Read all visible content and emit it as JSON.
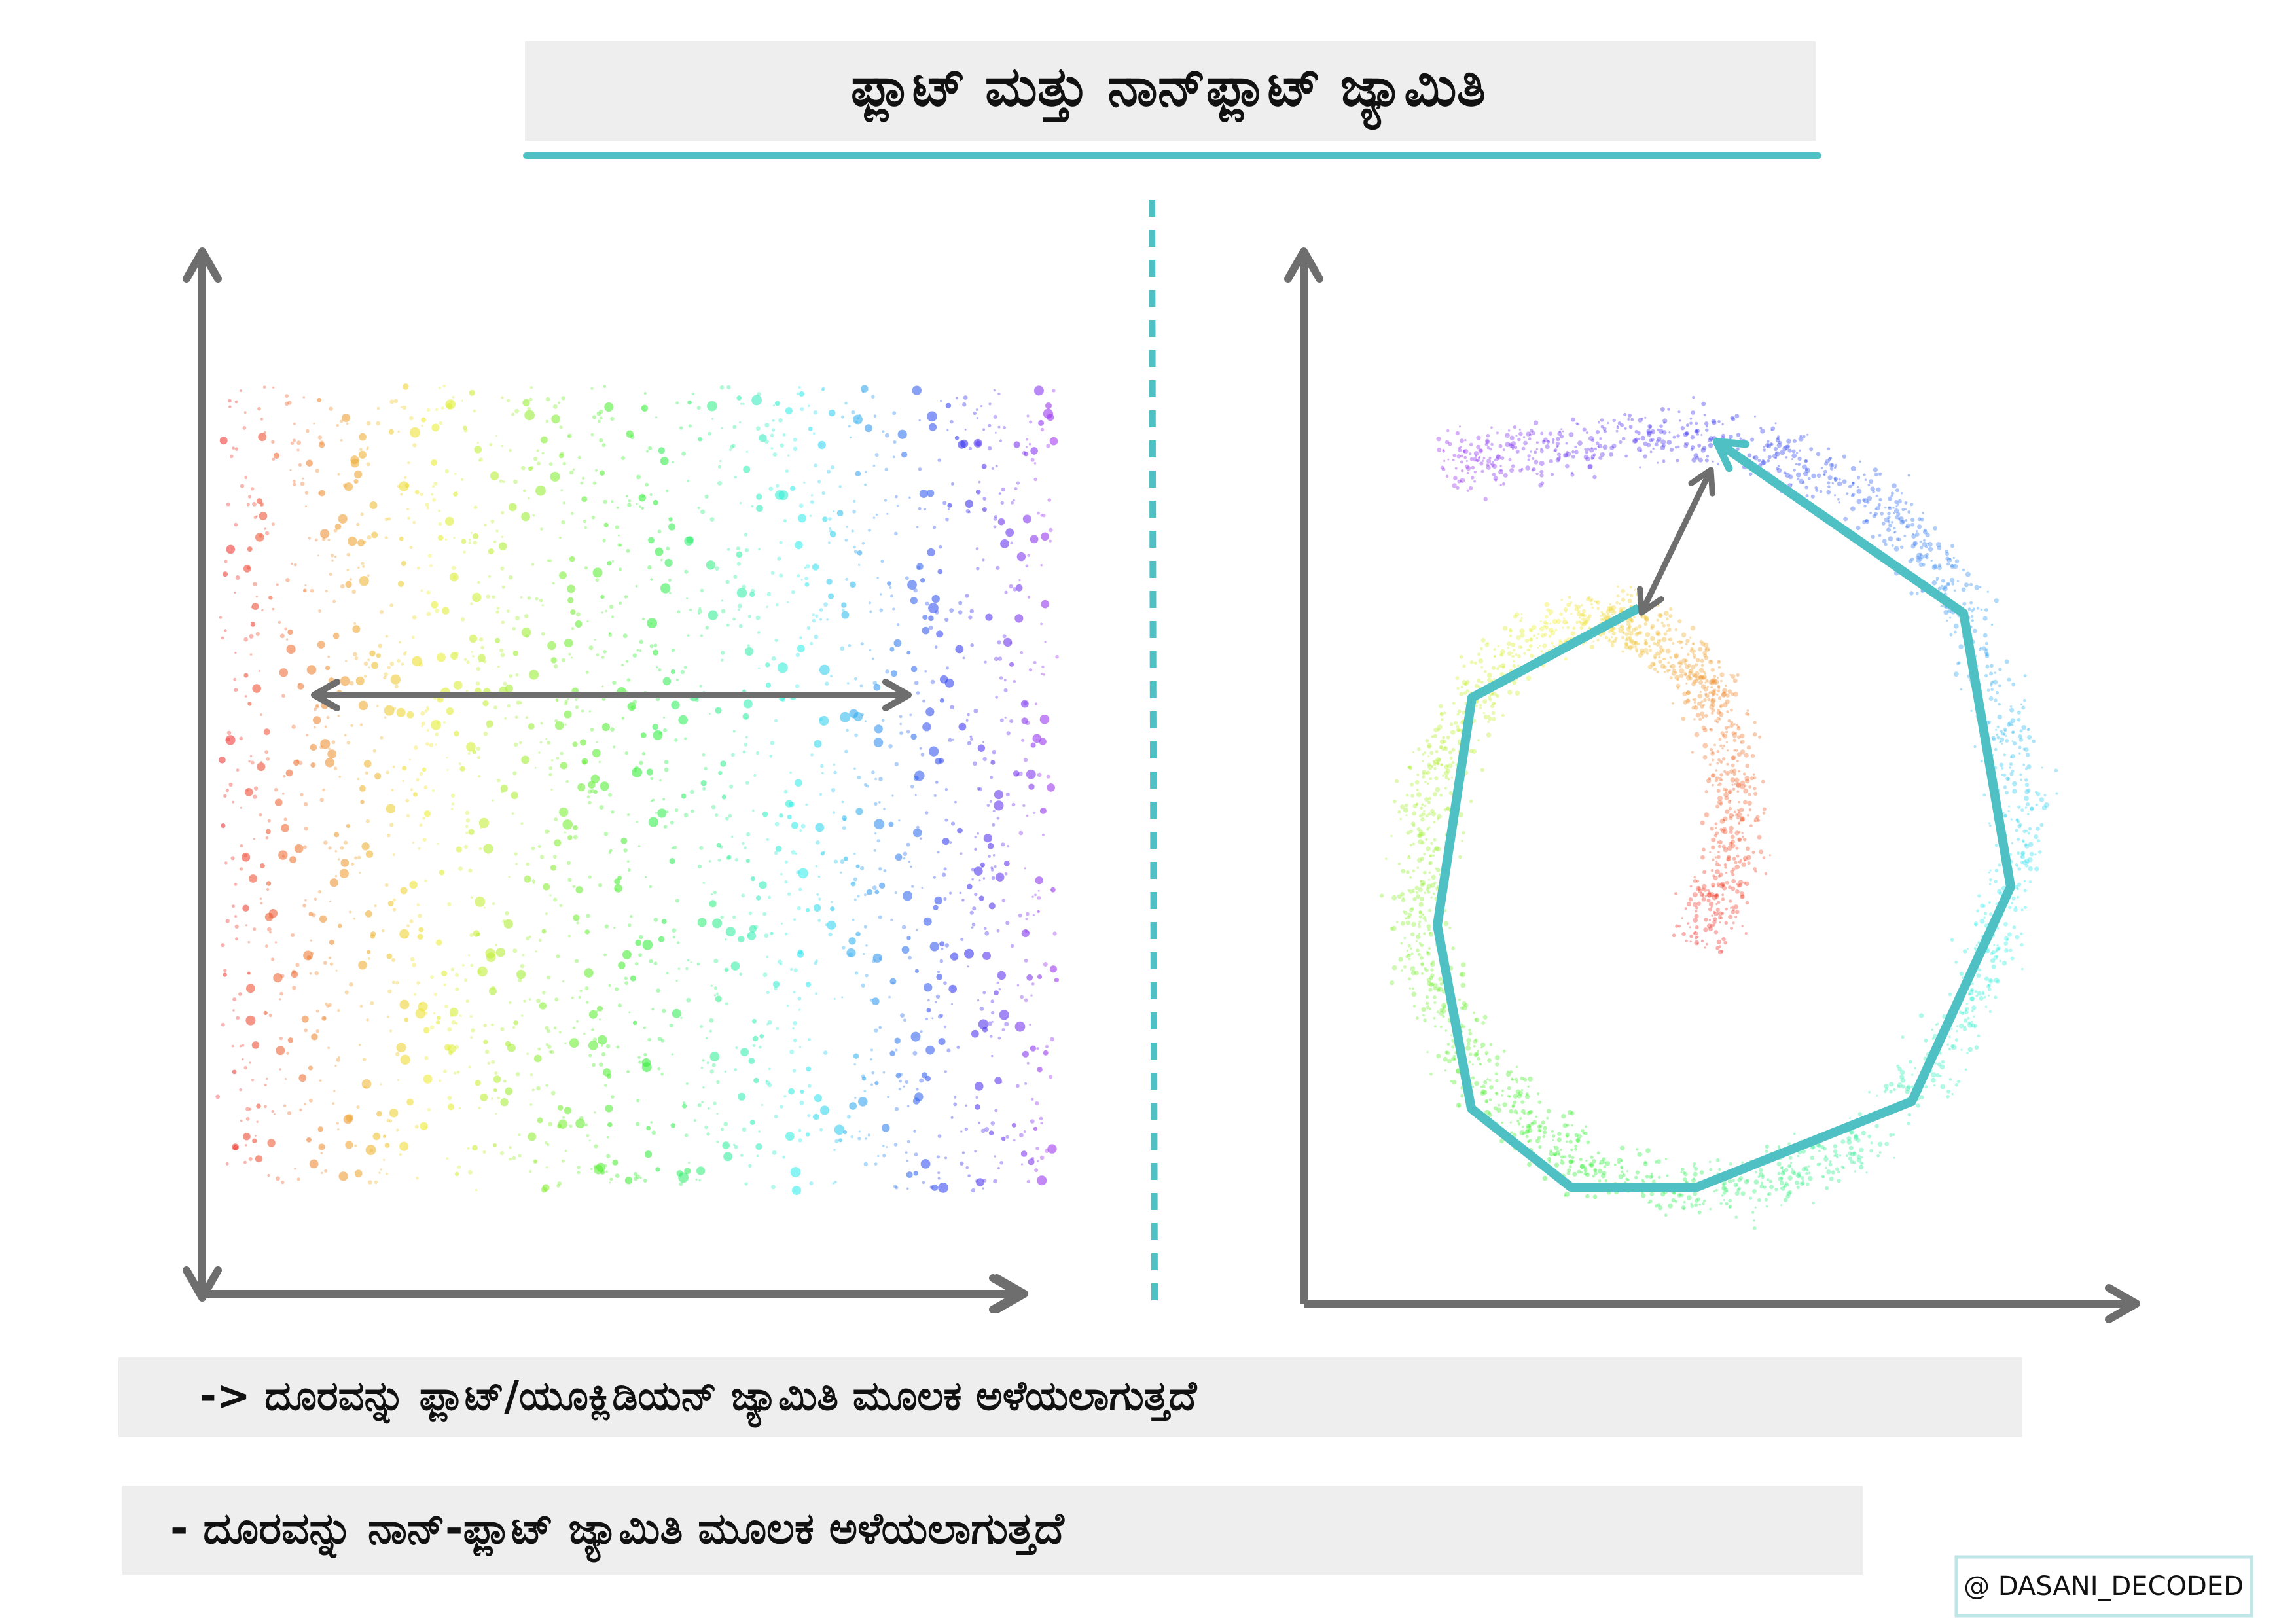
{
  "header": {
    "title": "ಫ್ಲಾಟ್ ಮತ್ತು ನಾನ್‌ಫ್ಲಾಟ್ ಜ್ಯಾಮಿತಿ"
  },
  "captions": [
    "-> ದೂರವನ್ನು ಫ್ಲಾಟ್/ಯೂಕ್ಲಿಡಿಯನ್ ಜ್ಯಾಮಿತಿ ಮೂಲಕ ಅಳೆಯಲಾಗುತ್ತದೆ",
    "- ದೂರವನ್ನು ನಾನ್-ಫ್ಲಾಟ್ ಜ್ಯಾಮಿತಿ ಮೂಲಕ ಅಳೆಯಲಾಗುತ್ತದೆ"
  ],
  "watermark": "@ DASANI_DECODED"
}
